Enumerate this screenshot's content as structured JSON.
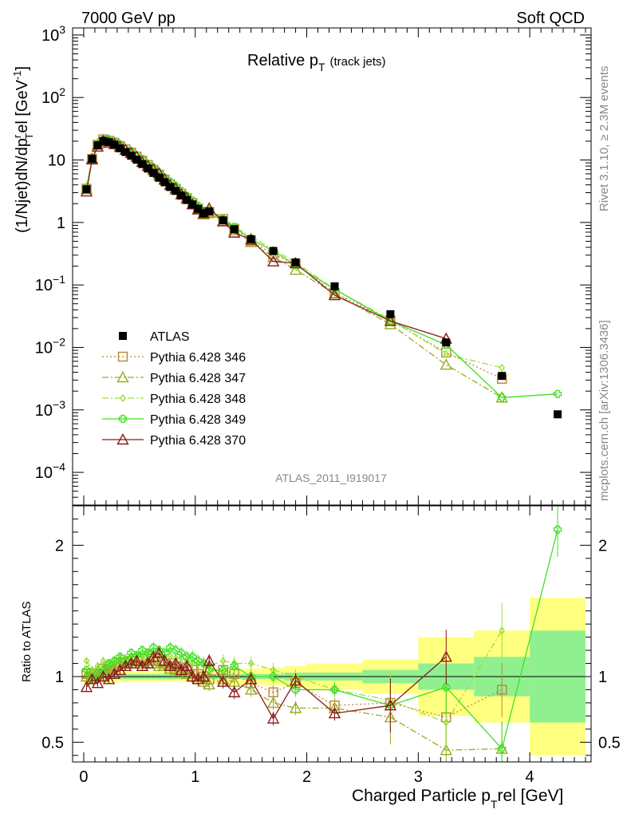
{
  "header": {
    "left": "7000 GeV pp",
    "right": "Soft QCD"
  },
  "side": {
    "rivet": "Rivet 3.1.10, ≥ 2.3M events",
    "mcplots": "mcplots.cern.ch [arXiv:1306.3436]"
  },
  "chart_data": {
    "type": "line",
    "title": "Relative p",
    "title_sub": "T",
    "title_suffix": "(track jets)",
    "analysis_id": "ATLAS_2011_I919017",
    "xlabel": "Charged Particle p",
    "xlabel_sub": "T",
    "xlabel_suffix": "rel [GeV]",
    "ylabel_main": "(1/Njet)dN/dp",
    "ylabel_unit": "el [GeV",
    "ylabel_ratio": "Ratio to ATLAS",
    "xlim": [
      -0.1,
      4.55
    ],
    "ylim_main": [
      3e-05,
      1300
    ],
    "ylim_ratio": [
      0.35,
      2.3
    ],
    "y_scale_main": "log",
    "x_ticks": [
      0,
      1,
      2,
      3,
      4
    ],
    "ratio_ticks": [
      0.5,
      1,
      2
    ],
    "main_tick_labels": [
      {
        "v": 1000,
        "b": "10",
        "e": "3"
      },
      {
        "v": 100,
        "b": "10",
        "e": "2"
      },
      {
        "v": 10,
        "b": "10",
        "e": ""
      },
      {
        "v": 1,
        "b": "1",
        "e": ""
      },
      {
        "v": 0.1,
        "b": "10",
        "e": "−1"
      },
      {
        "v": 0.01,
        "b": "10",
        "e": "−2"
      },
      {
        "v": 0.001,
        "b": "10",
        "e": "−3"
      },
      {
        "v": 0.0001,
        "b": "10",
        "e": "−4"
      }
    ],
    "x": [
      0.025,
      0.075,
      0.125,
      0.175,
      0.225,
      0.275,
      0.325,
      0.375,
      0.425,
      0.475,
      0.525,
      0.575,
      0.625,
      0.675,
      0.725,
      0.775,
      0.825,
      0.875,
      0.925,
      0.975,
      1.025,
      1.075,
      1.125,
      1.25,
      1.35,
      1.5,
      1.7,
      1.9,
      2.25,
      2.75,
      3.25,
      3.75,
      4.25
    ],
    "data": {
      "name": "ATLAS",
      "values": [
        3.4,
        10.4,
        17.2,
        20.2,
        19.3,
        17.6,
        15.4,
        13.4,
        11.7,
        10.1,
        8.6,
        7.3,
        6.2,
        5.2,
        4.4,
        3.7,
        3.2,
        2.7,
        2.3,
        1.95,
        1.65,
        1.4,
        1.5,
        1.08,
        0.78,
        0.54,
        0.35,
        0.23,
        0.095,
        0.034,
        0.012,
        0.0035,
        0.00085
      ],
      "band_edges": [
        0.0,
        0.05,
        0.1,
        0.15,
        0.2,
        0.25,
        0.3,
        0.35,
        0.4,
        0.45,
        0.5,
        0.55,
        0.6,
        0.65,
        0.7,
        0.75,
        0.8,
        0.85,
        0.9,
        0.95,
        1.0,
        1.05,
        1.1,
        1.15,
        1.3,
        1.4,
        1.6,
        1.8,
        2.0,
        2.5,
        3.0,
        3.5,
        4.0,
        4.5
      ],
      "band_stat": [
        0.02,
        0.02,
        0.02,
        0.02,
        0.02,
        0.02,
        0.02,
        0.02,
        0.02,
        0.02,
        0.02,
        0.02,
        0.02,
        0.02,
        0.02,
        0.02,
        0.02,
        0.02,
        0.02,
        0.02,
        0.02,
        0.02,
        0.02,
        0.02,
        0.02,
        0.02,
        0.02,
        0.03,
        0.03,
        0.05,
        0.1,
        0.15,
        0.35,
        0.65
      ],
      "band_tot": [
        0.06,
        0.06,
        0.05,
        0.05,
        0.05,
        0.05,
        0.04,
        0.04,
        0.04,
        0.04,
        0.04,
        0.04,
        0.04,
        0.04,
        0.04,
        0.04,
        0.04,
        0.04,
        0.04,
        0.04,
        0.05,
        0.05,
        0.05,
        0.05,
        0.06,
        0.06,
        0.07,
        0.08,
        0.1,
        0.13,
        0.3,
        0.35,
        0.6,
        1.1
      ]
    },
    "series": [
      {
        "name": "Pythia 6.428 346",
        "color": "#b8863b",
        "marker": "square",
        "dash": "2,3",
        "values": [
          1.02,
          1.0,
          1.02,
          1.06,
          1.05,
          1.07,
          1.08,
          1.1,
          1.12,
          1.12,
          1.13,
          1.14,
          1.12,
          1.12,
          1.1,
          1.1,
          1.08,
          1.07,
          1.06,
          1.05,
          1.02,
          1.0,
          0.98,
          1.05,
          1.02,
          0.95,
          0.88,
          0.95,
          0.78,
          0.8,
          0.69,
          0.9,
          null
        ]
      },
      {
        "name": "Pythia 6.428 347",
        "color": "#9aaa1e",
        "marker": "triangle",
        "dash": "8,3,2,3",
        "values": [
          1.0,
          1.02,
          1.04,
          1.05,
          1.06,
          1.08,
          1.1,
          1.1,
          1.12,
          1.1,
          1.1,
          1.12,
          1.1,
          1.08,
          1.08,
          1.06,
          1.05,
          1.04,
          1.02,
          1.0,
          0.98,
          0.96,
          0.94,
          0.98,
          0.96,
          0.9,
          0.8,
          0.76,
          0.76,
          0.69,
          0.44,
          0.45,
          null
        ]
      },
      {
        "name": "Pythia 6.428 348",
        "color": "#9be03a",
        "marker": "diamond",
        "dash": "8,3,2,3",
        "values": [
          1.12,
          1.05,
          1.08,
          1.12,
          1.1,
          1.12,
          1.14,
          1.14,
          1.15,
          1.16,
          1.15,
          1.18,
          1.18,
          1.16,
          1.15,
          1.16,
          1.14,
          1.14,
          1.12,
          1.1,
          1.1,
          1.1,
          1.08,
          1.12,
          1.1,
          1.1,
          1.05,
          1.0,
          0.9,
          0.82,
          0.65,
          1.35,
          null
        ]
      },
      {
        "name": "Pythia 6.428 349",
        "color": "#40e020",
        "marker": "cross",
        "dash": "",
        "values": [
          1.05,
          0.98,
          1.02,
          1.05,
          1.1,
          1.12,
          1.15,
          1.12,
          1.18,
          1.16,
          1.2,
          1.18,
          1.22,
          1.2,
          1.18,
          1.22,
          1.2,
          1.18,
          1.15,
          1.15,
          1.12,
          1.1,
          1.05,
          1.05,
          1.08,
          1.0,
          1.0,
          0.9,
          0.9,
          0.78,
          0.92,
          0.45,
          2.12
        ]
      },
      {
        "name": "Pythia 6.428 370",
        "color": "#8b1a1a",
        "marker": "triangle",
        "dash": "",
        "values": [
          0.92,
          0.98,
          0.95,
          1.0,
          0.98,
          1.02,
          1.05,
          1.08,
          1.1,
          1.12,
          1.08,
          1.1,
          1.15,
          1.18,
          1.12,
          1.08,
          1.1,
          1.05,
          1.08,
          1.0,
          0.98,
          1.0,
          1.12,
          0.96,
          0.88,
          0.98,
          0.68,
          0.97,
          0.72,
          0.78,
          1.15,
          null,
          null
        ]
      }
    ]
  }
}
